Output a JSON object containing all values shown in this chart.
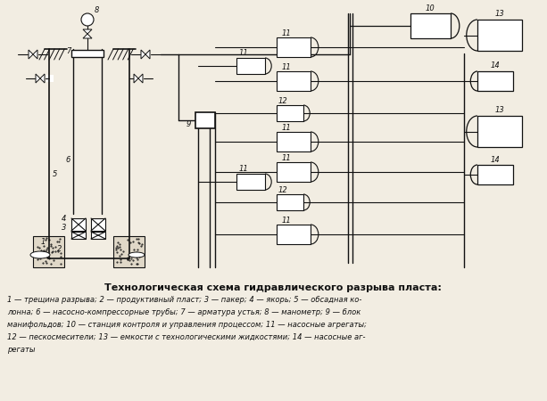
{
  "title": "Технологическая схема гидравлического разрыва пласта:",
  "cap1": "1 — трещина разрыва; 2 — продуктивный пласт; 3 — пакер; 4 — якорь; 5 — обсадная ко-",
  "cap2": "лонна; 6 — насосно-компрессорные трубы; 7 — арматура устья; 8 — манометр; 9 — блок",
  "cap3": "манифольдов; 10 — станция контроля и управления процессом; 11 — насосные агрегаты;",
  "cap4": "12 — пескосмесители; 13 — емкости с технологическими жидкостями; 14 — насосные аг-",
  "cap5": "регаты",
  "bg": "#f2ede2",
  "lc": "#111111"
}
